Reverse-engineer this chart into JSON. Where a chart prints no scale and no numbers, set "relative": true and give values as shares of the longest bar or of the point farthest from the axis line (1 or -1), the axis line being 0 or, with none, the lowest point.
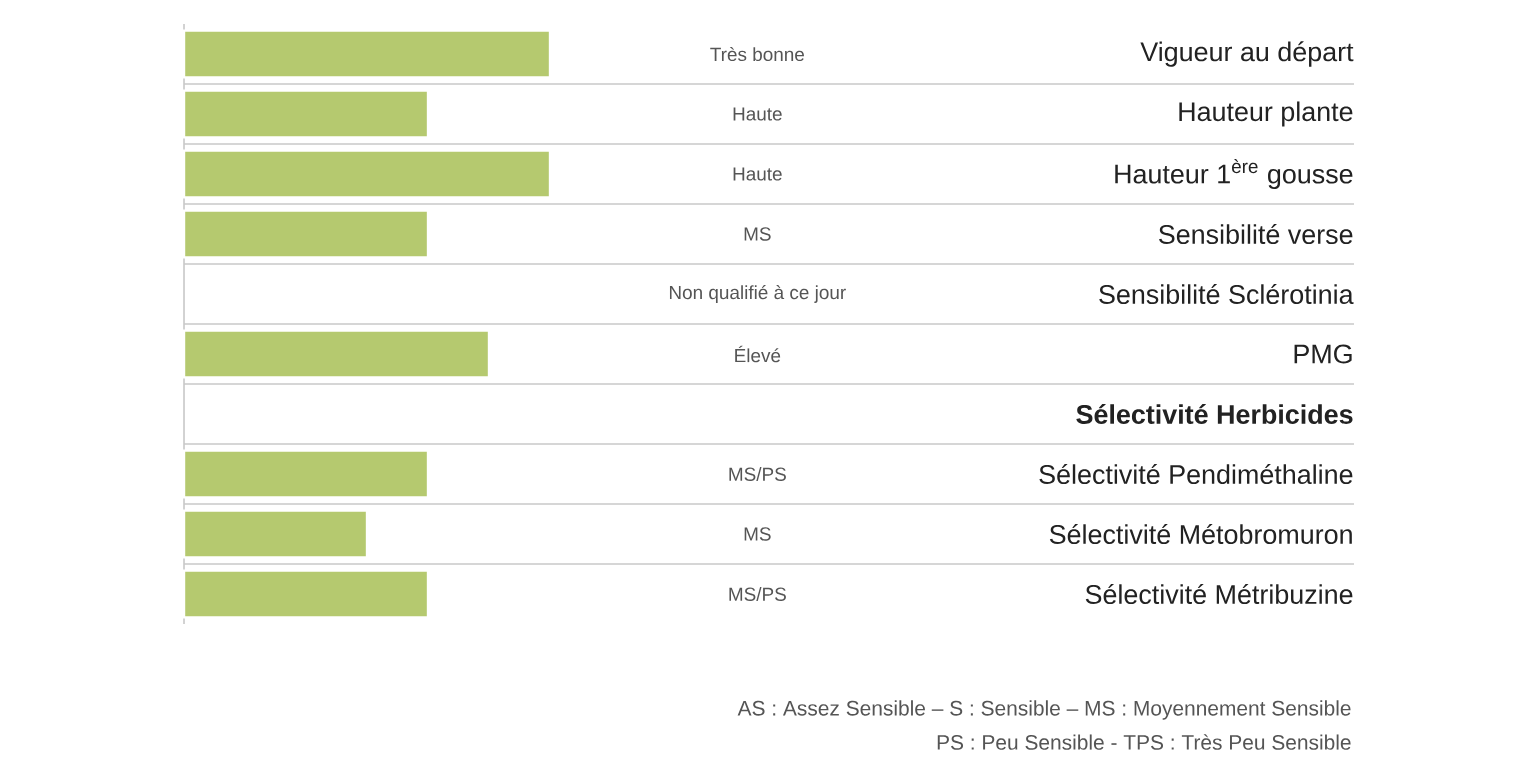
{
  "chart_data": [
    {
      "type": "bar",
      "orientation": "horizontal",
      "relative": true,
      "categories": [
        "Vigueur au départ",
        "Hauteur plante",
        "Hauteur 1$^{ère}$ gousse",
        "Sensibilité verse",
        "Sensibilité Sclérotinia",
        "PMG"
      ],
      "series": [
        {
          "color": "#b5c96f",
          "values": [
            1,
            0.6667,
            1,
            0.6667,
            null,
            0.8333
          ]
        }
      ],
      "annotations": [
        "Très bonne",
        "Haute",
        "Haute",
        "MS",
        "Non qualifié à ce jour",
        "Élevé"
      ]
    },
    {
      "type": "bar",
      "orientation": "horizontal",
      "relative": true,
      "title": "Sélectivité Herbicides",
      "categories": [
        "Sélectivité Pendiméthaline",
        "Sélectivité Métobromuron",
        "Sélectivité Métribuzine"
      ],
      "series": [
        {
          "color": "#b5c96f",
          "values": [
            1,
            0.75,
            1
          ]
        }
      ],
      "annotations": [
        "MS/PS",
        "MS",
        "MS/PS",
        "AS : Assez Sensible –  S : Sensible – MS : Moyennement Sensible",
        "PS : Peu Sensible - TPS : Très Peu Sensible"
      ]
    }
  ]
}
